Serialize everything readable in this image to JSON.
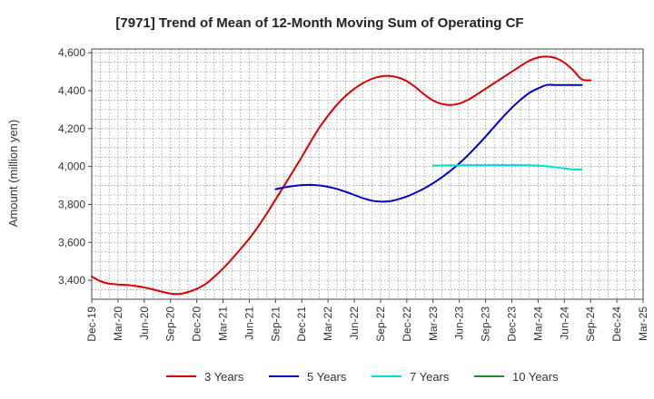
{
  "chart_data": {
    "type": "line",
    "title": "[7971]  Trend of Mean of 12-Month Moving Sum of Operating CF",
    "xlabel": "",
    "ylabel": "Amount (million yen)",
    "ylim": [
      3300,
      4620
    ],
    "yticks": [
      3400,
      3600,
      3800,
      4000,
      4200,
      4400,
      4600
    ],
    "ytick_labels": [
      "3,400",
      "3,600",
      "3,800",
      "4,000",
      "4,200",
      "4,400",
      "4,600"
    ],
    "x_ticks": [
      "Dec-19",
      "Mar-20",
      "Jun-20",
      "Sep-20",
      "Dec-20",
      "Mar-21",
      "Jun-21",
      "Sep-21",
      "Dec-21",
      "Mar-22",
      "Jun-22",
      "Sep-22",
      "Dec-22",
      "Mar-23",
      "Jun-23",
      "Sep-23",
      "Dec-23",
      "Mar-24",
      "Jun-24",
      "Sep-24",
      "Dec-24",
      "Mar-25"
    ],
    "grid": true,
    "legend_position": "bottom",
    "series": [
      {
        "name": "3 Years",
        "color": "#dd0000",
        "x": [
          0,
          1,
          2,
          3,
          4,
          5,
          6,
          7,
          8,
          9,
          10,
          11,
          12,
          13,
          14,
          15,
          16,
          17,
          18,
          19,
          20,
          21,
          22,
          23,
          24,
          25,
          26,
          27,
          28,
          29,
          30,
          31,
          32,
          33,
          34,
          35,
          36,
          37,
          38,
          39,
          40,
          41,
          42,
          43,
          44,
          45,
          46,
          47,
          48,
          49,
          50,
          51,
          52,
          53,
          54,
          55,
          56,
          57
        ],
        "values": [
          3420,
          3395,
          3382,
          3378,
          3375,
          3370,
          3362,
          3352,
          3340,
          3330,
          3328,
          3338,
          3355,
          3380,
          3418,
          3462,
          3512,
          3565,
          3620,
          3682,
          3752,
          3825,
          3900,
          3975,
          4050,
          4130,
          4205,
          4268,
          4325,
          4372,
          4410,
          4440,
          4462,
          4475,
          4478,
          4470,
          4450,
          4418,
          4380,
          4348,
          4330,
          4325,
          4332,
          4352,
          4380,
          4410,
          4440,
          4470,
          4500,
          4530,
          4558,
          4575,
          4580,
          4572,
          4548,
          4508,
          4460,
          4455
        ]
      },
      {
        "name": "5 Years",
        "color": "#0000cc",
        "x": [
          21,
          22,
          23,
          24,
          25,
          26,
          27,
          28,
          29,
          30,
          31,
          32,
          33,
          34,
          35,
          36,
          37,
          38,
          39,
          40,
          41,
          42,
          43,
          44,
          45,
          46,
          47,
          48,
          49,
          50,
          51,
          52,
          53,
          54,
          55,
          56
        ],
        "values": [
          3880,
          3890,
          3897,
          3902,
          3903,
          3900,
          3893,
          3882,
          3867,
          3850,
          3833,
          3820,
          3815,
          3817,
          3827,
          3842,
          3862,
          3885,
          3912,
          3943,
          3978,
          4017,
          4060,
          4108,
          4158,
          4210,
          4262,
          4310,
          4352,
          4388,
          4412,
          4430,
          4430,
          4430,
          4430,
          4430
        ]
      },
      {
        "name": "7 Years",
        "color": "#00dddd",
        "x": [
          39,
          40,
          41,
          42,
          43,
          44,
          45,
          46,
          47,
          48,
          49,
          50,
          51,
          52,
          53,
          54,
          55,
          56
        ],
        "values": [
          4005,
          4006,
          4006,
          4007,
          4007,
          4008,
          4008,
          4008,
          4008,
          4008,
          4008,
          4007,
          4005,
          4001,
          3996,
          3990,
          3985,
          3985
        ]
      },
      {
        "name": "10 Years",
        "color": "#228b22",
        "x": [],
        "values": []
      }
    ]
  }
}
